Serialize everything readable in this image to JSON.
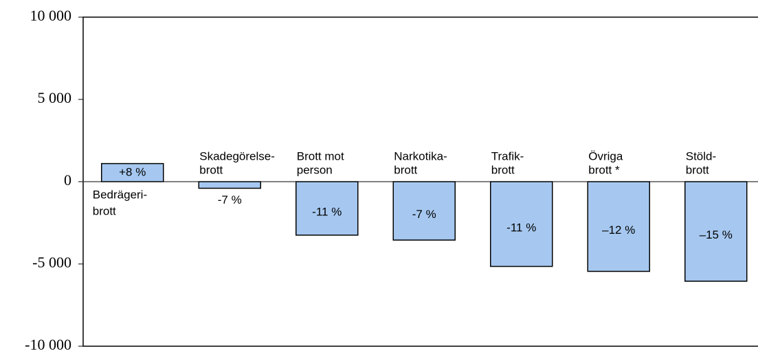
{
  "chart_data": {
    "type": "bar",
    "categories": [
      [
        "Bedrägeri-",
        "brott"
      ],
      [
        "Skadegörelse-",
        "brott"
      ],
      [
        "Brott mot",
        "person"
      ],
      [
        "Narkotika-",
        "brott"
      ],
      [
        "Trafik-",
        "brott"
      ],
      [
        "Övriga",
        "brott *"
      ],
      [
        "Stöld-",
        "brott"
      ]
    ],
    "values": [
      1100,
      -400,
      -3250,
      -3550,
      -5150,
      -5450,
      -6050
    ],
    "annotations": [
      "+8 %",
      "-7 %",
      "-11 %",
      "-7 %",
      "-11 %",
      "–12 %",
      "–15 %"
    ],
    "color": "#a6c8f0",
    "ylim": [
      -10000,
      10000
    ],
    "yticks": [
      {
        "value": -10000,
        "label": "-10 000"
      },
      {
        "value": -5000,
        "label": "-5 000"
      },
      0,
      {
        "value": 5000,
        "label": "5 000"
      },
      {
        "value": 10000,
        "label": "10 000"
      }
    ],
    "grid": false
  }
}
